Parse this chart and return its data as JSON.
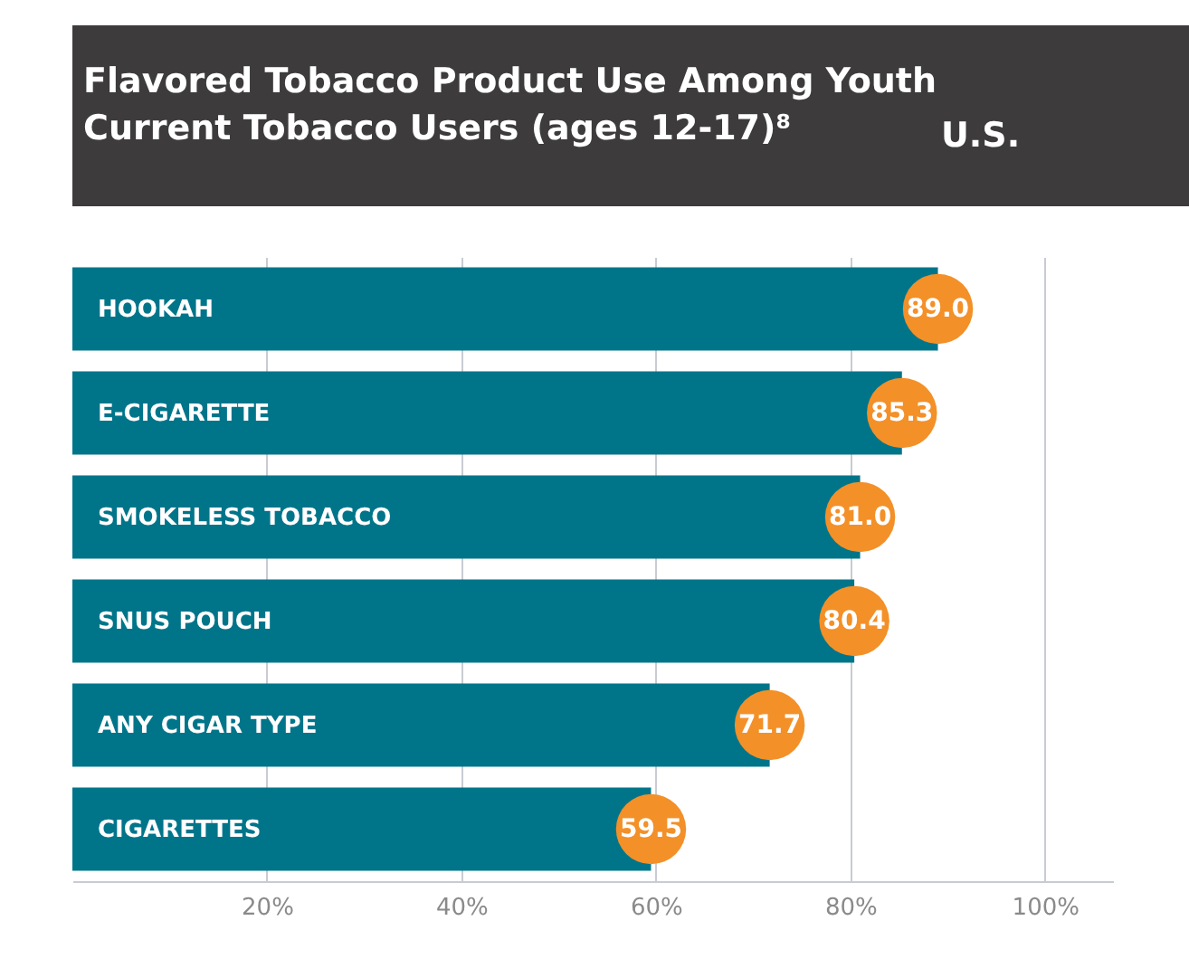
{
  "chart_data": {
    "type": "bar",
    "orientation": "horizontal",
    "title": "Flavored Tobacco Product Use Among Youth Current Tobacco Users (ages 12-17)⁸",
    "annotations": [
      "U.S."
    ],
    "categories": [
      "HOOKAH",
      "E-CIGARETTE",
      "SMOKELESS TOBACCO",
      "SNUS POUCH",
      "ANY CIGAR TYPE",
      "CIGARETTES"
    ],
    "values": [
      89.0,
      85.3,
      81.0,
      80.4,
      71.7,
      59.5
    ],
    "color": "#00758a",
    "value_labels": [
      "89.0",
      "85.3",
      "81.0",
      "80.4",
      "71.7",
      "59.5"
    ],
    "xlim": [
      0,
      107
    ],
    "xticks": [
      {
        "value": 20,
        "label": "20%"
      },
      {
        "value": 40,
        "label": "40%"
      },
      {
        "value": 60,
        "label": "60%"
      },
      {
        "value": 80,
        "label": "80%"
      },
      {
        "value": 100,
        "label": "100%"
      }
    ],
    "grid": "x"
  }
}
